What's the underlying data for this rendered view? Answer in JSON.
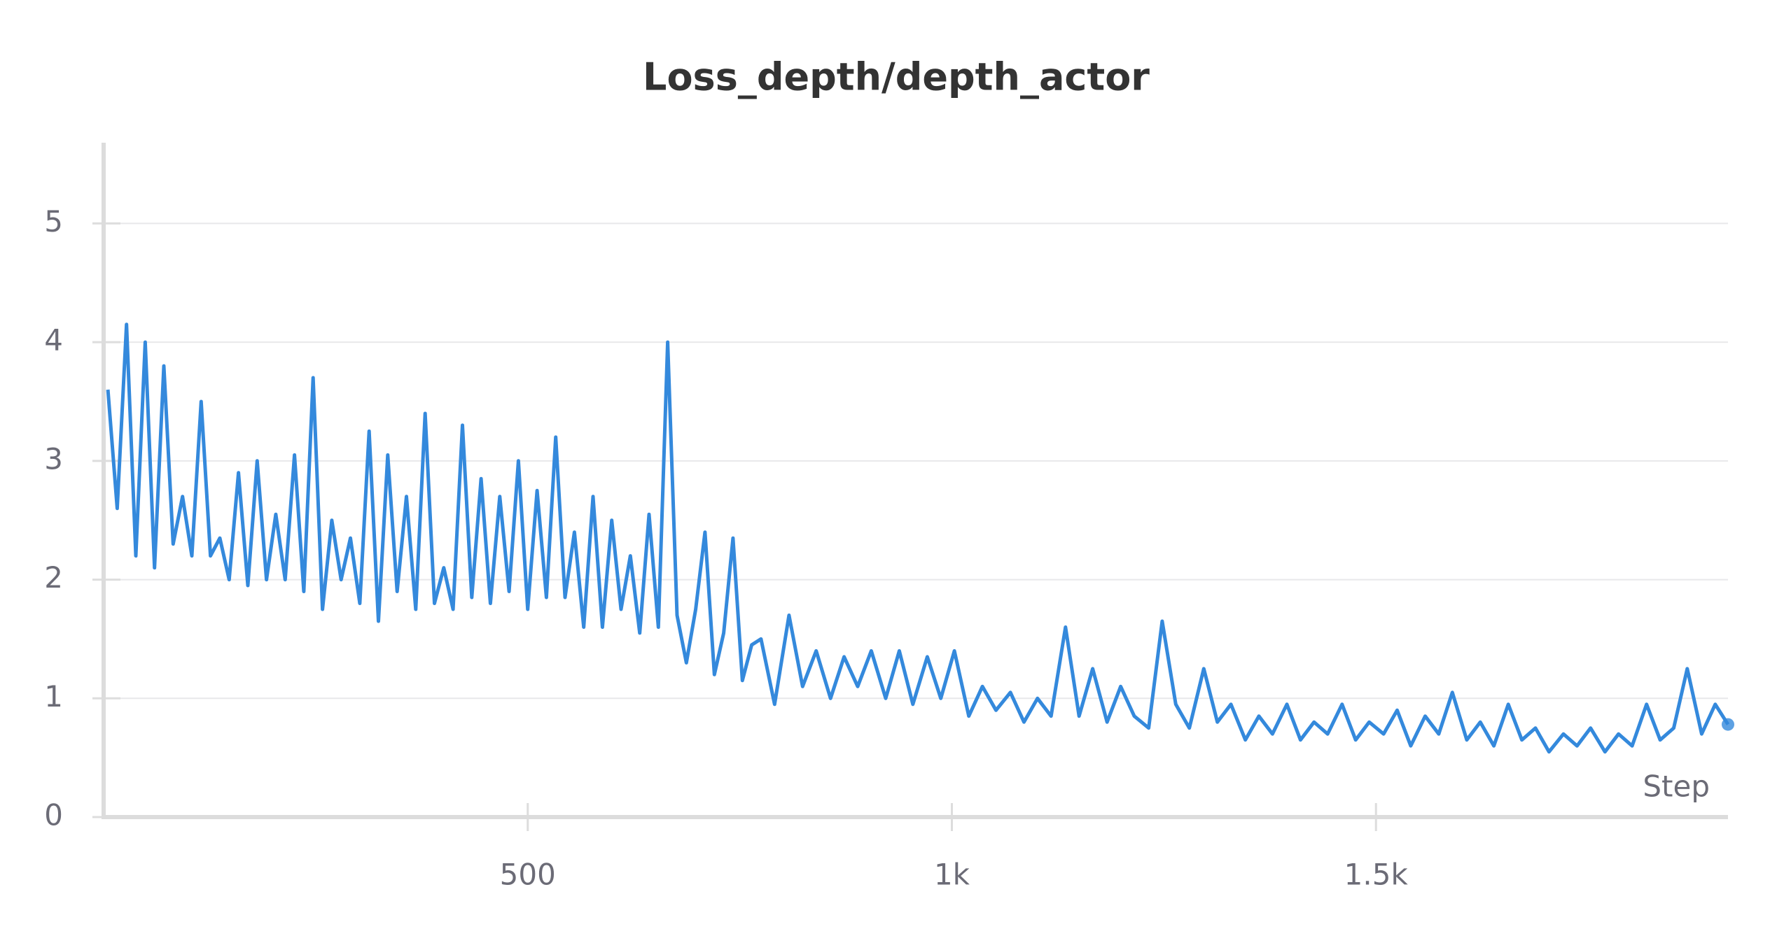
{
  "chart_data": {
    "type": "line",
    "title": "Loss_depth/depth_actor",
    "xlabel": "Step",
    "x": [
      5,
      16,
      27,
      38,
      49,
      60,
      71,
      82,
      93,
      104,
      115,
      126,
      137,
      148,
      159,
      170,
      181,
      192,
      203,
      214,
      225,
      236,
      247,
      258,
      269,
      280,
      291,
      302,
      313,
      324,
      335,
      346,
      357,
      368,
      379,
      390,
      401,
      412,
      423,
      434,
      445,
      456,
      467,
      478,
      489,
      500,
      511,
      522,
      533,
      544,
      555,
      566,
      577,
      588,
      599,
      610,
      621,
      632,
      643,
      654,
      665,
      676,
      687,
      698,
      709,
      720,
      731,
      742,
      753,
      764,
      775,
      791,
      808,
      824,
      840,
      857,
      873,
      889,
      905,
      922,
      938,
      954,
      971,
      987,
      1003,
      1020,
      1036,
      1052,
      1069,
      1085,
      1101,
      1117,
      1134,
      1150,
      1166,
      1183,
      1199,
      1215,
      1232,
      1248,
      1264,
      1280,
      1297,
      1313,
      1329,
      1346,
      1362,
      1378,
      1395,
      1411,
      1427,
      1443,
      1460,
      1476,
      1492,
      1509,
      1525,
      1541,
      1558,
      1574,
      1590,
      1607,
      1623,
      1639,
      1656,
      1672,
      1688,
      1704,
      1721,
      1737,
      1753,
      1770,
      1786,
      1802,
      1819,
      1835,
      1851,
      1867,
      1884,
      1900,
      1915
    ],
    "series": [
      {
        "color": "#3489dc",
        "values": [
          3.6,
          2.6,
          4.15,
          2.2,
          4.0,
          2.1,
          3.8,
          2.3,
          2.7,
          2.2,
          3.5,
          2.2,
          2.35,
          2.0,
          2.9,
          1.95,
          3.0,
          2.0,
          2.55,
          2.0,
          3.05,
          1.9,
          3.7,
          1.75,
          2.5,
          2.0,
          2.35,
          1.8,
          3.25,
          1.65,
          3.05,
          1.9,
          2.7,
          1.75,
          3.4,
          1.8,
          2.1,
          1.75,
          3.3,
          1.85,
          2.85,
          1.8,
          2.7,
          1.9,
          3.0,
          1.75,
          2.75,
          1.85,
          3.2,
          1.85,
          2.4,
          1.6,
          2.7,
          1.6,
          2.5,
          1.75,
          2.2,
          1.55,
          2.55,
          1.6,
          4.0,
          1.7,
          1.3,
          1.75,
          2.4,
          1.2,
          1.55,
          2.35,
          1.15,
          1.45,
          1.5,
          0.95,
          1.7,
          1.1,
          1.4,
          1.0,
          1.35,
          1.1,
          1.4,
          1.0,
          1.4,
          0.95,
          1.35,
          1.0,
          1.4,
          0.85,
          1.1,
          0.9,
          1.05,
          0.8,
          1.0,
          0.85,
          1.6,
          0.85,
          1.25,
          0.8,
          1.1,
          0.85,
          0.75,
          1.65,
          0.95,
          0.75,
          1.25,
          0.8,
          0.95,
          0.65,
          0.85,
          0.7,
          0.95,
          0.65,
          0.8,
          0.7,
          0.95,
          0.65,
          0.8,
          0.7,
          0.9,
          0.6,
          0.85,
          0.7,
          1.05,
          0.65,
          0.8,
          0.6,
          0.95,
          0.65,
          0.75,
          0.55,
          0.7,
          0.6,
          0.75,
          0.55,
          0.7,
          0.6,
          0.95,
          0.65,
          0.75,
          1.25,
          0.7,
          0.95,
          0.78
        ]
      }
    ],
    "xlim": [
      0,
      1915
    ],
    "ylim": [
      0,
      5.68
    ],
    "xticks": [
      500,
      {
        "value": 1000,
        "label": "1k"
      },
      {
        "value": 1500,
        "label": "1.5k"
      }
    ],
    "yticks": [
      0,
      1,
      2,
      3,
      4,
      5
    ],
    "grid": true
  }
}
